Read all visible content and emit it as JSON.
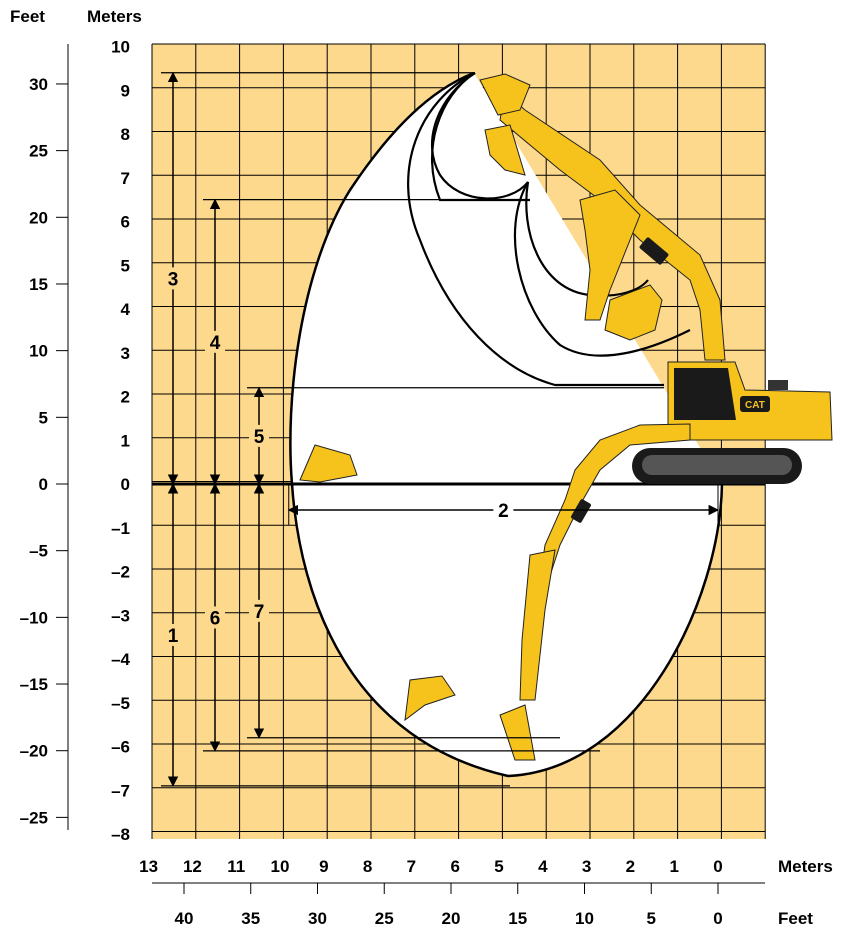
{
  "colors": {
    "background": "#ffffff",
    "grid_fill": "#fdd98e",
    "grid_line": "#000000",
    "envelope_fill": "#ffffff",
    "machine_yellow": "#f6c31c",
    "machine_dark": "#1a1a1a"
  },
  "axes": {
    "left_feet_header": "Feet",
    "left_meters_header": "Meters",
    "bottom_meters_label": "Meters",
    "bottom_feet_label": "Feet",
    "meters_y_range": [
      -8,
      10
    ],
    "meters_x_range": [
      13,
      0
    ],
    "meters_y_ticks": [
      "10",
      "9",
      "8",
      "7",
      "6",
      "5",
      "4",
      "3",
      "2",
      "1",
      "0",
      "–1",
      "–2",
      "–3",
      "–4",
      "–5",
      "–6",
      "–7",
      "–8"
    ],
    "feet_y_ticks": [
      "30",
      "25",
      "20",
      "15",
      "10",
      "5",
      "0",
      "–5",
      "–10",
      "–15",
      "–20",
      "–25"
    ],
    "feet_y_values": [
      30,
      25,
      20,
      15,
      10,
      5,
      0,
      -5,
      -10,
      -15,
      -20,
      -25
    ],
    "meters_x_ticks": [
      "13",
      "12",
      "11",
      "10",
      "9",
      "8",
      "7",
      "6",
      "5",
      "4",
      "3",
      "2",
      "1",
      "0"
    ],
    "feet_x_ticks": [
      "40",
      "35",
      "30",
      "25",
      "20",
      "15",
      "10",
      "5",
      "0"
    ],
    "feet_x_values": [
      40,
      35,
      30,
      25,
      20,
      15,
      10,
      5,
      0
    ]
  },
  "dimensions": [
    {
      "label": "1",
      "value_m_from": 0,
      "value_m_to": -6.9
    },
    {
      "label": "2",
      "value_m_from": 9.8,
      "value_m_to": 0
    },
    {
      "label": "3",
      "value_m_from": 0,
      "value_m_to": 9.4
    },
    {
      "label": "4",
      "value_m_from": 0,
      "value_m_to": 6.5
    },
    {
      "label": "5",
      "value_m_from": 0,
      "value_m_to": 2.2
    },
    {
      "label": "6",
      "value_m_from": 0,
      "value_m_to": -6.1
    },
    {
      "label": "7",
      "value_m_from": 0,
      "value_m_to": -5.8
    }
  ],
  "machine": {
    "brand_badge": "CAT",
    "icon": "excavator-icon"
  }
}
